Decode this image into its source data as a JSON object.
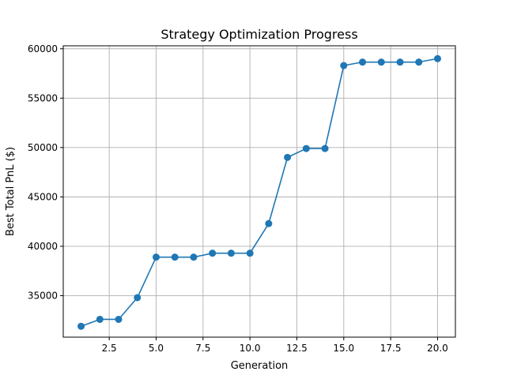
{
  "chart_data": {
    "type": "line",
    "title": "Strategy Optimization Progress",
    "xlabel": "Generation",
    "ylabel": "Best Total PnL ($)",
    "xlim": [
      0.05,
      20.95
    ],
    "ylim": [
      30800,
      60300
    ],
    "xticks": [
      2.5,
      5.0,
      7.5,
      10.0,
      12.5,
      15.0,
      17.5,
      20.0
    ],
    "xtick_labels": [
      "2.5",
      "5.0",
      "7.5",
      "10.0",
      "12.5",
      "15.0",
      "17.5",
      "20.0"
    ],
    "yticks": [
      35000,
      40000,
      45000,
      50000,
      55000,
      60000
    ],
    "ytick_labels": [
      "35000",
      "40000",
      "45000",
      "50000",
      "55000",
      "60000"
    ],
    "grid": true,
    "legend": "none",
    "series": [
      {
        "color": "#1f77b4",
        "marker": "circle",
        "x": [
          1,
          2,
          3,
          4,
          5,
          6,
          7,
          8,
          9,
          10,
          11,
          12,
          13,
          14,
          15,
          16,
          17,
          18,
          19,
          20
        ],
        "y": [
          31900,
          32600,
          32600,
          34800,
          38900,
          38900,
          38900,
          39300,
          39300,
          39300,
          42300,
          49000,
          49900,
          49900,
          58300,
          58650,
          58650,
          58650,
          58650,
          59000
        ]
      }
    ]
  }
}
